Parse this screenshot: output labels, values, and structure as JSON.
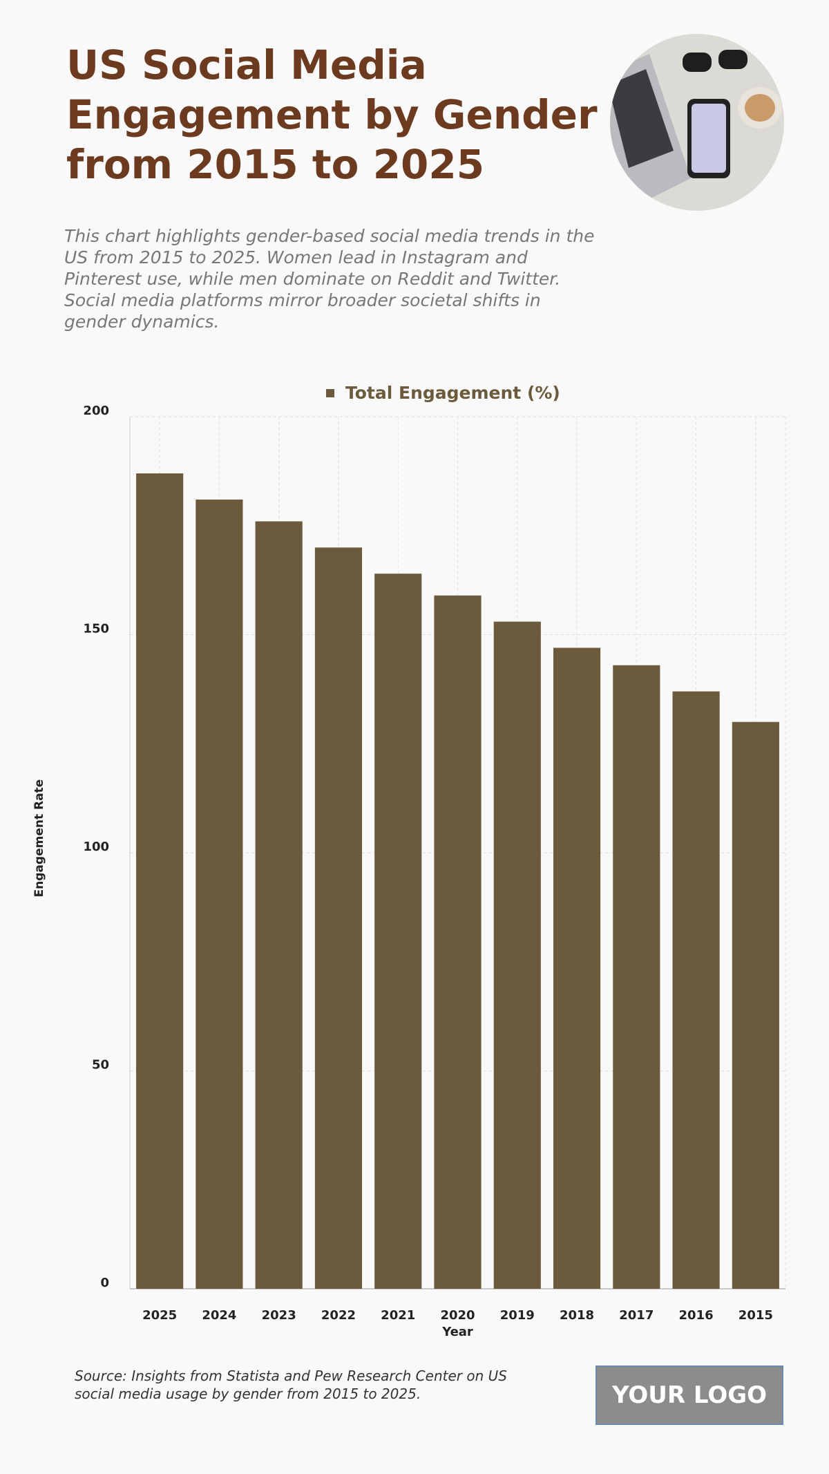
{
  "chart_data": {
    "type": "bar",
    "title": "US Social Media Engagement by Gender from 2015 to 2025",
    "subtitle": "This chart highlights gender-based social media trends in the US from 2015 to 2025. Women lead in Instagram and Pinterest use, while men dominate on Reddit and Twitter. Social media platforms mirror broader societal shifts in gender dynamics.",
    "categories": [
      "2025",
      "2024",
      "2023",
      "2022",
      "2021",
      "2020",
      "2019",
      "2018",
      "2017",
      "2016",
      "2015"
    ],
    "series": [
      {
        "name": "Total Engagement (%)",
        "color": "#6b5a3c",
        "values": [
          187,
          181,
          176,
          170,
          164,
          159,
          153,
          147,
          143,
          137,
          130
        ]
      }
    ],
    "x_label": "Year",
    "y_label": "Engagement Rate",
    "ylim": [
      0,
      200
    ],
    "yticks": [
      0,
      50,
      100,
      150,
      200
    ],
    "grid": true,
    "legend": "top",
    "source": "Source: Insights from Statista and Pew Research Center on US social media usage by gender from 2015 to 2025.",
    "logo": "YOUR LOGO"
  }
}
